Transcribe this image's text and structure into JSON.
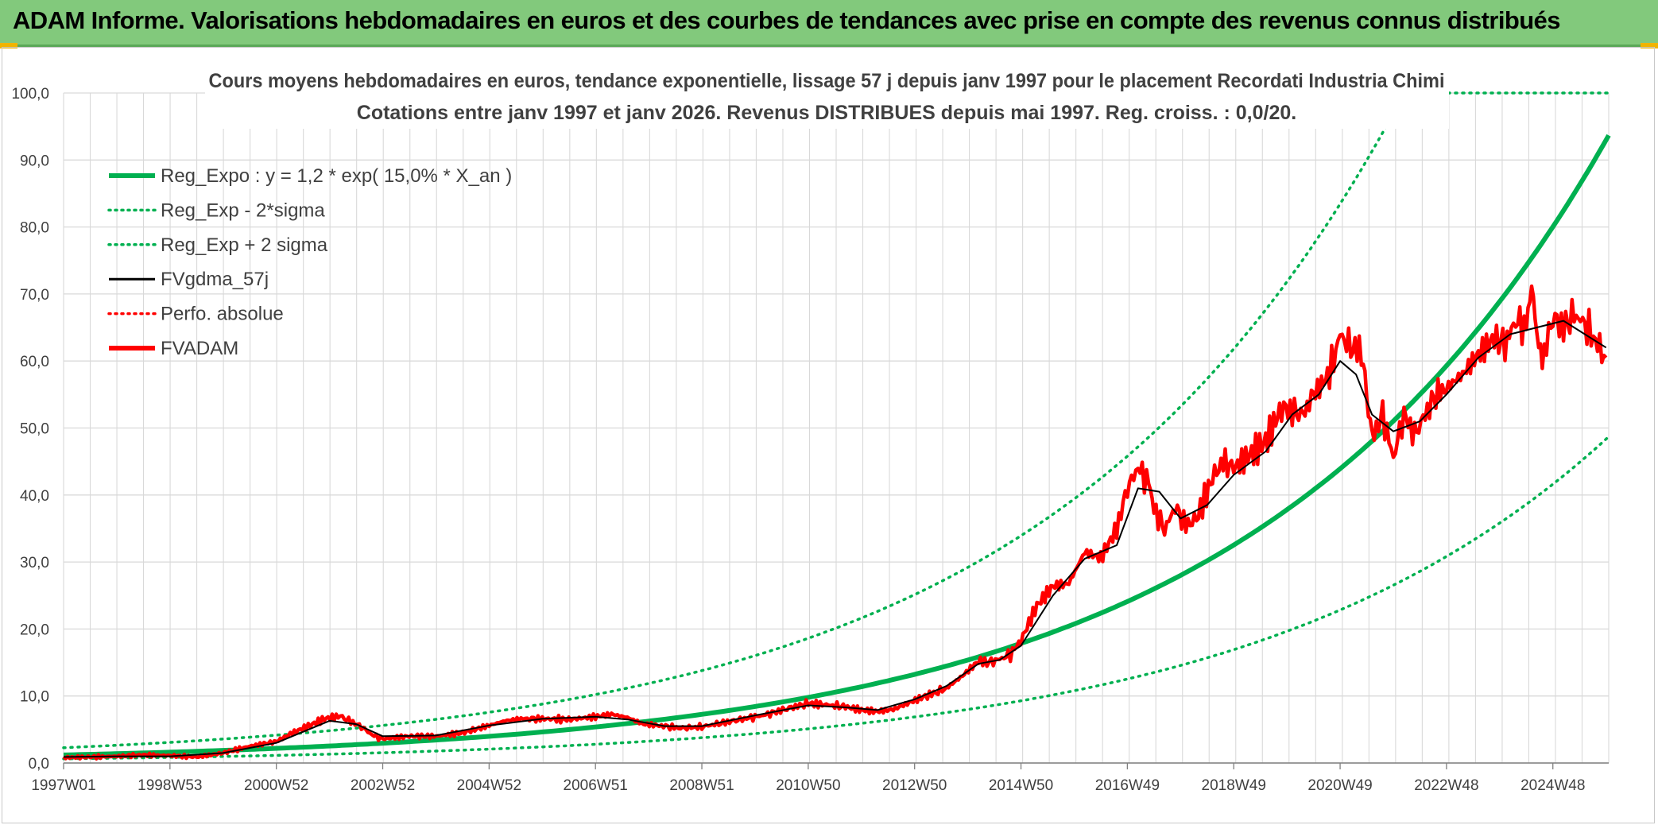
{
  "banner": {
    "title": "ADAM Informe. Valorisations hebdomadaires en euros et des courbes de tendances avec prise en compte des revenus connus distribués"
  },
  "colors": {
    "banner_bg": "#82c97c",
    "accent_corner": "#f0b400",
    "reg_green": "#00b050",
    "fvadam_red": "#ff0000",
    "fvgdma_black": "#000000",
    "grid": "#d9d9d9"
  },
  "chart_data": {
    "type": "line",
    "title_line1": "Cours moyens hebdomadaires en euros, tendance exponentielle, lissage 57 j depuis janv 1997 pour le placement Recordati Industria Chimi",
    "title_line2": "Cotations entre janv 1997 et janv 2026. Revenus DISTRIBUES depuis mai 1997. Reg. croiss. : 0,0/20.",
    "xlabel": "",
    "ylabel": "",
    "ylim": [
      0,
      100
    ],
    "y_ticks": [
      "0,0",
      "10,0",
      "20,0",
      "30,0",
      "40,0",
      "50,0",
      "60,0",
      "70,0",
      "80,0",
      "90,0",
      "100,0"
    ],
    "x_tick_labels": [
      "1997W01",
      "1998W53",
      "2000W52",
      "2002W52",
      "2004W52",
      "2006W51",
      "2008W51",
      "2010W50",
      "2012W50",
      "2014W50",
      "2016W49",
      "2018W49",
      "2020W49",
      "2022W48",
      "2024W48"
    ],
    "x_range_years": [
      1997.0,
      2026.05
    ],
    "legend_position": "top-left",
    "legend": [
      {
        "key": "reg_expo",
        "label": "Reg_Expo : y = 1,2 * exp( 15,0% *  X_an )",
        "color": "#00b050",
        "style": "solid-thick"
      },
      {
        "key": "reg_minus",
        "label": "Reg_Exp - 2*sigma",
        "color": "#00b050",
        "style": "dotted"
      },
      {
        "key": "reg_plus",
        "label": "Reg_Exp + 2 sigma",
        "color": "#00b050",
        "style": "dotted"
      },
      {
        "key": "fvgdma",
        "label": "FVgdma_57j",
        "color": "#000000",
        "style": "solid-thin"
      },
      {
        "key": "perfo",
        "label": "Perfo. absolue",
        "color": "#ff0000",
        "style": "dotted"
      },
      {
        "key": "fvadam",
        "label": "FVADAM",
        "color": "#ff0000",
        "style": "solid-thick"
      }
    ],
    "regression": {
      "a": 1.2,
      "rate": 0.15,
      "minus_factor": 0.52,
      "plus_factor": 1.9
    },
    "series": [
      {
        "name": "FVADAM",
        "x": [
          1997.0,
          1997.5,
          1998.0,
          1998.5,
          1999.0,
          1999.5,
          2000.0,
          2000.5,
          2001.0,
          2001.3,
          2001.6,
          2001.9,
          2002.2,
          2002.4,
          2002.6,
          2002.8,
          2003.0,
          2003.5,
          2004.0,
          2004.5,
          2005.0,
          2005.3,
          2005.6,
          2006.0,
          2006.5,
          2007.0,
          2007.3,
          2007.6,
          2007.9,
          2008.2,
          2008.6,
          2009.0,
          2009.4,
          2009.8,
          2010.2,
          2010.6,
          2011.0,
          2011.3,
          2011.7,
          2012.0,
          2012.3,
          2012.6,
          2012.9,
          2013.2,
          2013.4,
          2013.6,
          2013.9,
          2014.2,
          2014.4,
          2014.6,
          2014.8,
          2015.0,
          2015.3,
          2015.6,
          2015.9,
          2016.2,
          2016.5,
          2016.8,
          2017.0,
          2017.2,
          2017.4,
          2017.5,
          2017.7,
          2017.9,
          2018.1,
          2018.3,
          2018.6,
          2018.8,
          2019.0,
          2019.3,
          2019.6,
          2019.9,
          2020.1,
          2020.3,
          2020.5,
          2020.8,
          2021.0,
          2021.2,
          2021.4,
          2021.5,
          2021.6,
          2021.8,
          2022.0,
          2022.2,
          2022.4,
          2022.6,
          2022.8,
          2023.0,
          2023.3,
          2023.6,
          2023.9,
          2024.1,
          2024.3,
          2024.5,
          2024.6,
          2024.7,
          2024.8,
          2025.0,
          2025.2,
          2025.4,
          2025.6,
          2025.8,
          2026.0
        ],
        "values": [
          0.8,
          0.9,
          1.0,
          1.2,
          1.1,
          0.9,
          1.5,
          2.5,
          3.2,
          4.5,
          5.5,
          6.6,
          7.0,
          6.2,
          5.4,
          4.2,
          3.6,
          4.0,
          4.0,
          4.5,
          5.6,
          6.3,
          6.6,
          6.6,
          6.5,
          6.9,
          7.3,
          6.8,
          5.8,
          5.6,
          5.2,
          5.4,
          6.0,
          6.6,
          7.2,
          8.1,
          8.9,
          8.7,
          8.4,
          7.9,
          7.7,
          8.0,
          9.0,
          10.0,
          10.5,
          11.2,
          13.0,
          15.2,
          15.0,
          15.5,
          16.2,
          18.3,
          23.5,
          26.4,
          26.8,
          31.5,
          30.6,
          35.0,
          41.0,
          44.1,
          41.8,
          38.0,
          34.8,
          38.2,
          35.5,
          36.4,
          42.5,
          45.0,
          44.0,
          46.0,
          48.0,
          53.0,
          52.5,
          52.0,
          55.0,
          58.0,
          64.0,
          62.0,
          61.5,
          55.0,
          48.5,
          52.0,
          45.5,
          52.0,
          49.0,
          52.0,
          55.0,
          56.0,
          58.0,
          61.0,
          63.5,
          62.5,
          66.0,
          65.0,
          71.5,
          64.0,
          60.0,
          66.5,
          65.0,
          67.0,
          65.5,
          63.0,
          60.5
        ]
      },
      {
        "name": "FVgdma_57j",
        "x": [
          1997.0,
          1998.0,
          1999.0,
          2000.0,
          2001.0,
          2002.0,
          2002.5,
          2003.0,
          2004.0,
          2005.0,
          2006.0,
          2007.0,
          2007.6,
          2008.3,
          2009.0,
          2010.0,
          2011.0,
          2011.7,
          2012.3,
          2013.0,
          2013.6,
          2014.2,
          2014.6,
          2015.0,
          2015.6,
          2016.2,
          2016.8,
          2017.2,
          2017.6,
          2018.0,
          2018.5,
          2019.0,
          2019.6,
          2020.1,
          2020.6,
          2021.0,
          2021.3,
          2021.6,
          2022.0,
          2022.5,
          2023.0,
          2023.6,
          2024.2,
          2024.7,
          2025.2,
          2025.6,
          2026.0
        ],
        "values": [
          0.9,
          1.0,
          1.0,
          1.5,
          3.0,
          6.3,
          5.8,
          4.0,
          4.1,
          5.6,
          6.6,
          6.9,
          6.5,
          5.5,
          5.5,
          7.1,
          8.6,
          8.3,
          7.9,
          9.5,
          11.5,
          14.8,
          15.4,
          17.5,
          25.0,
          30.5,
          32.5,
          41.0,
          40.5,
          36.5,
          38.5,
          43.0,
          46.5,
          52.0,
          55.0,
          60.0,
          58.0,
          52.0,
          49.5,
          51.0,
          55.0,
          60.5,
          64.0,
          65.0,
          66.0,
          64.0,
          62.0
        ]
      }
    ]
  }
}
